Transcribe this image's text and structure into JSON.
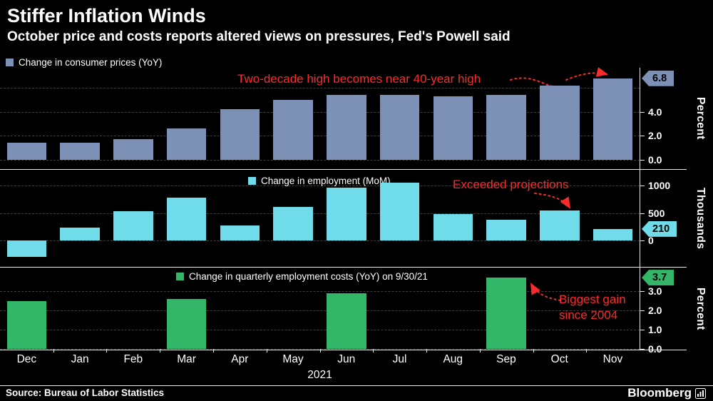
{
  "header": {
    "title": "Stiffer Inflation Winds",
    "subtitle": "October price and costs reports altered views on pressures, Fed's Powell said"
  },
  "x_axis": {
    "categories": [
      "Dec",
      "Jan",
      "Feb",
      "Mar",
      "Apr",
      "May",
      "Jun",
      "Jul",
      "Aug",
      "Sep",
      "Oct",
      "Nov"
    ],
    "year": "2021"
  },
  "chart_data": [
    {
      "type": "bar",
      "title": "Change in consumer prices (YoY)",
      "categories": [
        "Dec",
        "Jan",
        "Feb",
        "Mar",
        "Apr",
        "May",
        "Jun",
        "Jul",
        "Aug",
        "Sep",
        "Oct",
        "Nov"
      ],
      "values": [
        1.4,
        1.4,
        1.7,
        2.6,
        4.2,
        5.0,
        5.4,
        5.4,
        5.3,
        5.4,
        6.2,
        6.8
      ],
      "ylabel": "Percent",
      "ylim": [
        0,
        7.7
      ],
      "grid": true,
      "grid_values": [
        0,
        2,
        4,
        6
      ],
      "yticks": [
        {
          "value": 0,
          "label": "0.0"
        },
        {
          "value": 2,
          "label": "2.0"
        },
        {
          "value": 4,
          "label": "4.0"
        }
      ],
      "badge": {
        "value": 6.8,
        "label": "6.8"
      },
      "annotation": "Two-decade high becomes near 40-year high",
      "legend_position": "top-left",
      "color": "#7d90b6"
    },
    {
      "type": "bar",
      "title": "Change in employment (MoM)",
      "categories": [
        "Dec",
        "Jan",
        "Feb",
        "Mar",
        "Apr",
        "May",
        "Jun",
        "Jul",
        "Aug",
        "Sep",
        "Oct",
        "Nov"
      ],
      "values": [
        -306,
        233,
        536,
        785,
        269,
        614,
        962,
        1053,
        483,
        379,
        546,
        210
      ],
      "ylabel": "Thousands",
      "ylim": [
        -480,
        1290
      ],
      "grid": true,
      "grid_values": [
        0,
        500,
        1000
      ],
      "yticks": [
        {
          "value": 0,
          "label": "0"
        },
        {
          "value": 500,
          "label": "500"
        },
        {
          "value": 1000,
          "label": "1000"
        }
      ],
      "badge": {
        "value": 210,
        "label": "210"
      },
      "annotation": "Exceeded projections",
      "legend_position": "inside-top-center",
      "color": "#70dbe9"
    },
    {
      "type": "bar",
      "title": "Change in quarterly employment costs (YoY) on 9/30/21",
      "categories": [
        "Dec",
        "Jan",
        "Feb",
        "Mar",
        "Apr",
        "May",
        "Jun",
        "Jul",
        "Aug",
        "Sep",
        "Oct",
        "Nov"
      ],
      "values": [
        2.5,
        null,
        null,
        2.6,
        null,
        null,
        2.9,
        null,
        null,
        3.7,
        null,
        null
      ],
      "ylabel": "Percent",
      "ylim": [
        0,
        4.2
      ],
      "grid": true,
      "grid_values": [
        0,
        1,
        2,
        3
      ],
      "yticks": [
        {
          "value": 0,
          "label": "0.0"
        },
        {
          "value": 1,
          "label": "1.0"
        },
        {
          "value": 2,
          "label": "2.0"
        },
        {
          "value": 3,
          "label": "3.0"
        }
      ],
      "badge": {
        "value": 3.7,
        "label": "3.7"
      },
      "annotation": "Biggest gain since 2004",
      "legend_position": "inside-top-center",
      "color": "#33b667"
    }
  ],
  "footer": {
    "source": "Source: Bureau of Labor Statistics",
    "brand": "Bloomberg"
  },
  "colors": {
    "background": "#000000",
    "text": "#ffffff",
    "annotation": "#fb2b2b",
    "grid": "#3f3f3f",
    "cpi_bar": "#7d90b6",
    "employment_bar": "#70dbe9",
    "costs_bar": "#33b667"
  }
}
